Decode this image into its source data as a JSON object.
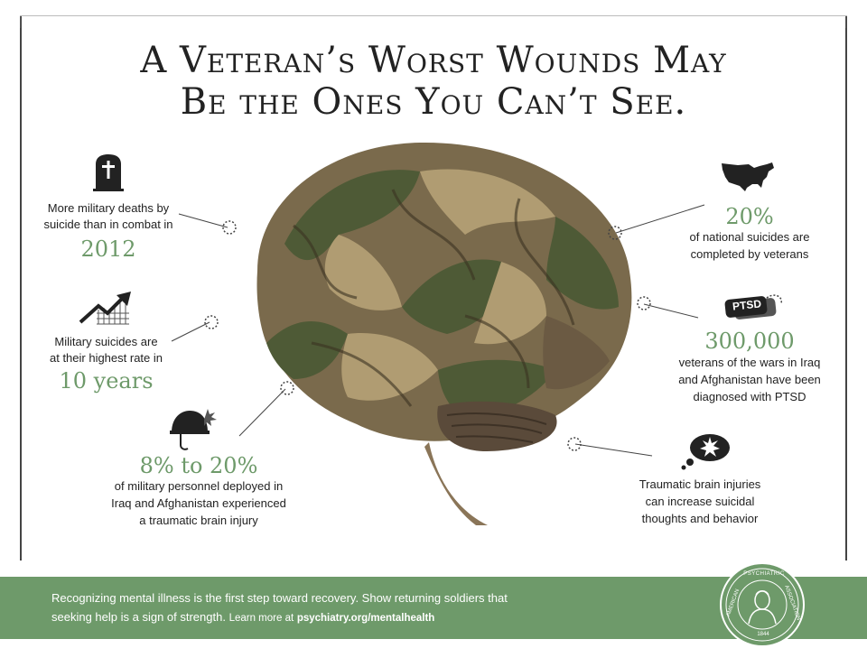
{
  "title": {
    "line1": "A Veteran’s Worst Wounds May",
    "line2": "Be the Ones You Can’t See."
  },
  "stats": {
    "suicide_combat": {
      "label_line1": "More military deaths by",
      "label_line2": "suicide than in combat in",
      "value": "2012",
      "icon": "tombstone-icon"
    },
    "national": {
      "value": "20%",
      "label_line1": "of national suicides are",
      "label_line2": "completed by veterans",
      "icon": "usa-map-icon"
    },
    "highest_rate": {
      "label_line1": "Military suicides are",
      "label_line2": "at their highest rate in",
      "value": "10 years",
      "icon": "rising-chart-icon"
    },
    "ptsd": {
      "badge": "PTSD",
      "value": "300,000",
      "label_line1": "veterans of the wars in Iraq",
      "label_line2": "and Afghanistan have been",
      "label_line3": "diagnosed with PTSD",
      "icon": "dog-tag-icon"
    },
    "tbi_percent": {
      "value": "8% to 20%",
      "label_line1": "of military personnel deployed in",
      "label_line2": "Iraq and Afghanistan experienced",
      "label_line3": "a traumatic brain injury",
      "icon": "helmet-icon"
    },
    "tbi_thoughts": {
      "label_line1": "Traumatic brain injuries",
      "label_line2": "can increase suicidal",
      "label_line3": "thoughts and behavior",
      "icon": "thought-bubble-icon"
    }
  },
  "footer": {
    "line1": "Recognizing mental illness is the first step toward recovery. Show returning soldiers that",
    "line2": "seeking help is a sign of strength.",
    "learn_more": "Learn more at",
    "link": "psychiatry.org/mentalhealth"
  },
  "seal": {
    "top_text": "PSYCHIATRIC",
    "left_text": "AMERICAN",
    "right_text": "ASSOCIATION",
    "year": "1844"
  },
  "colors": {
    "accent_green": "#6e9a6a",
    "brain_olive": "#4e5a36",
    "brain_tan": "#b09c72",
    "brain_brown": "#6b5a43"
  }
}
